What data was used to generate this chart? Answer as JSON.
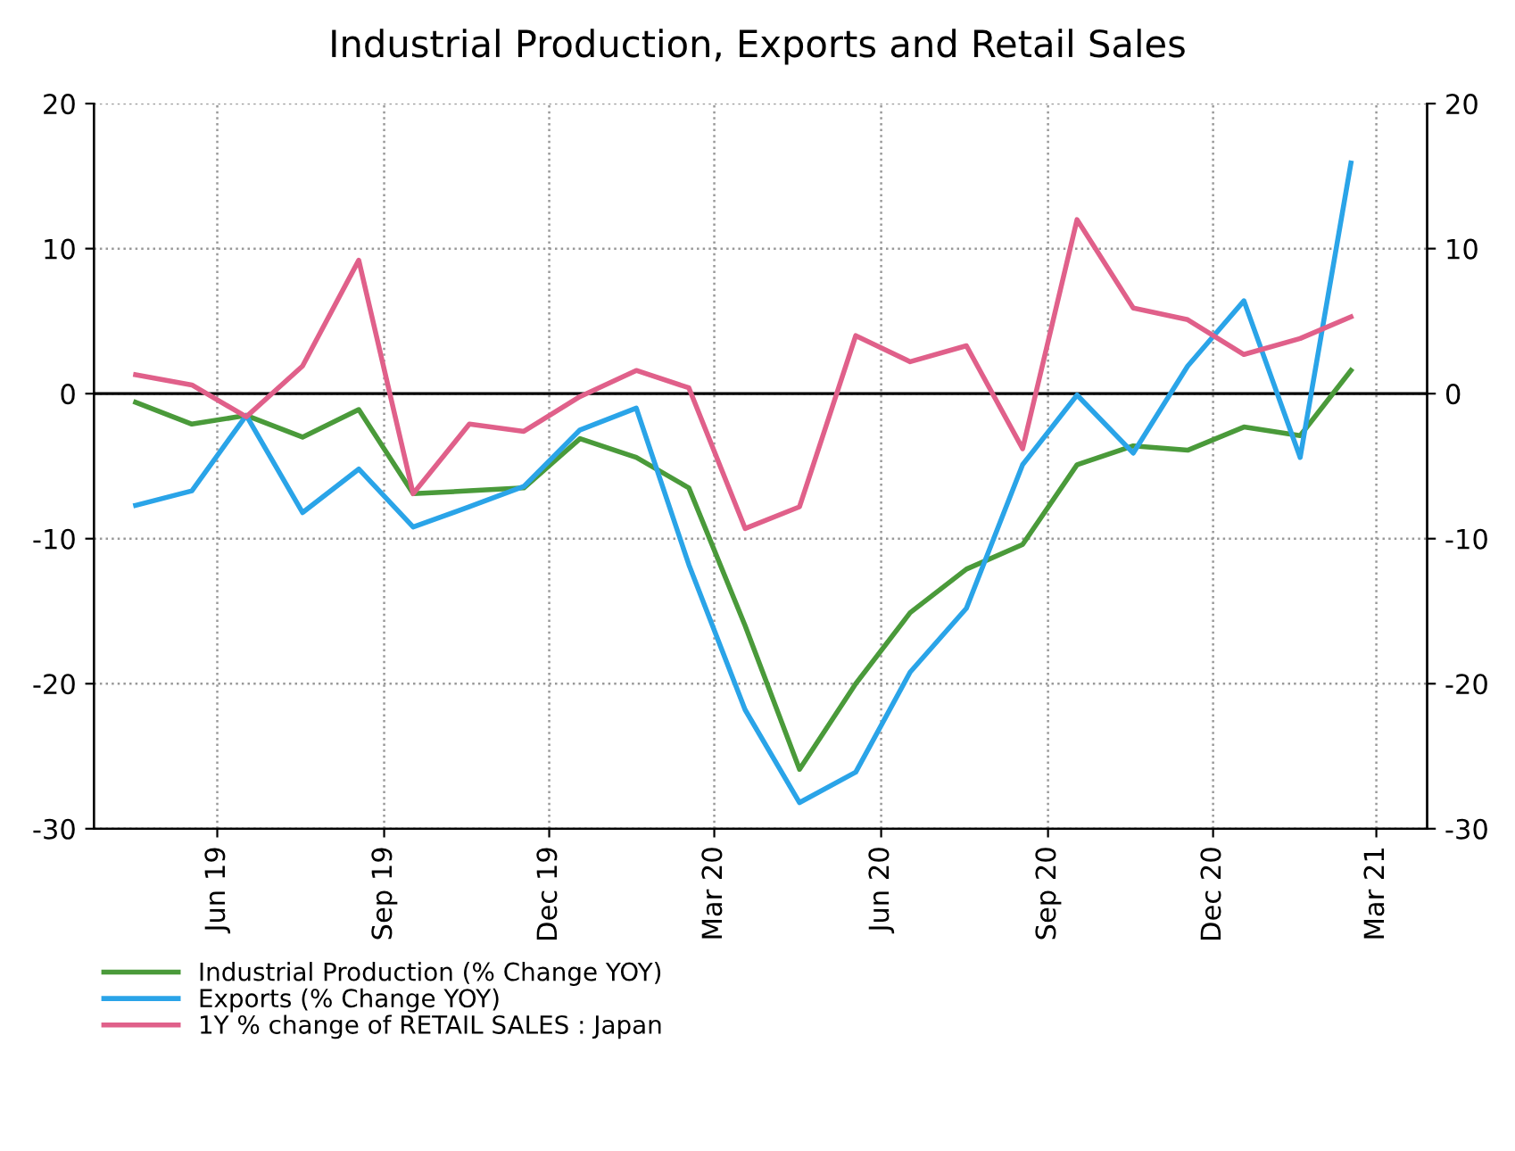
{
  "chart_data": {
    "type": "line",
    "title": "Industrial Production, Exports and Retail Sales",
    "x": [
      "2019-05-01",
      "2019-06-01",
      "2019-07-01",
      "2019-08-01",
      "2019-09-01",
      "2019-10-01",
      "2019-11-01",
      "2019-12-01",
      "2020-01-01",
      "2020-02-01",
      "2020-03-01",
      "2020-04-01",
      "2020-05-01",
      "2020-06-01",
      "2020-07-01",
      "2020-08-01",
      "2020-09-01",
      "2020-10-01",
      "2020-11-01",
      "2020-12-01",
      "2021-01-01",
      "2021-02-01",
      "2021-03-01"
    ],
    "series": [
      {
        "name": "Industrial Production (% Change YOY)",
        "color": "#4a9a3a",
        "values": [
          -0.6,
          -2.1,
          -1.5,
          -3.0,
          -1.1,
          -6.9,
          -6.7,
          -6.5,
          -3.1,
          -4.4,
          -6.5,
          -16.0,
          -25.9,
          -20.0,
          -15.1,
          -12.1,
          -10.4,
          -4.9,
          -3.6,
          -3.9,
          -2.3,
          -2.9,
          1.6
        ]
      },
      {
        "name": "Exports (% Change YOY)",
        "color": "#2aa4e8",
        "values": [
          -7.7,
          -6.7,
          -1.5,
          -8.2,
          -5.2,
          -9.2,
          -7.8,
          -6.4,
          -2.5,
          -1.0,
          -11.8,
          -21.8,
          -28.2,
          -26.1,
          -19.2,
          -14.8,
          -4.9,
          -0.1,
          -4.1,
          1.9,
          6.4,
          -4.4,
          15.9
        ]
      },
      {
        "name": "1Y % change of RETAIL SALES : Japan",
        "color": "#e0608a",
        "values": [
          1.3,
          0.6,
          -1.6,
          1.9,
          9.2,
          -6.9,
          -2.1,
          -2.6,
          -0.2,
          1.6,
          0.4,
          -9.3,
          -7.8,
          4.0,
          2.2,
          3.3,
          -3.8,
          12.0,
          5.9,
          5.1,
          2.7,
          3.8,
          5.3
        ]
      }
    ],
    "xlim": [
      "2019-04-08",
      "2021-04-12"
    ],
    "xticks": [
      {
        "value": "2019-06-15",
        "label": "Jun 19"
      },
      {
        "value": "2019-09-15",
        "label": "Sep 19"
      },
      {
        "value": "2019-12-15",
        "label": "Dec 19"
      },
      {
        "value": "2020-03-15",
        "label": "Mar 20"
      },
      {
        "value": "2020-06-15",
        "label": "Jun 20"
      },
      {
        "value": "2020-09-15",
        "label": "Sep 20"
      },
      {
        "value": "2020-12-15",
        "label": "Dec 20"
      },
      {
        "value": "2021-03-15",
        "label": "Mar 21"
      }
    ],
    "ylim": [
      -30,
      20
    ],
    "yticks": [
      -30,
      -20,
      -10,
      0,
      10,
      20
    ],
    "y2lim": [
      -30,
      20
    ],
    "y2ticks": [
      -30,
      -20,
      -10,
      0,
      10,
      20
    ],
    "ref_lines": [
      {
        "axis": "y",
        "value": 0,
        "color": "#000000"
      }
    ],
    "grid": true,
    "legend": "bottom left",
    "marker": "none",
    "line_style": "solid"
  }
}
